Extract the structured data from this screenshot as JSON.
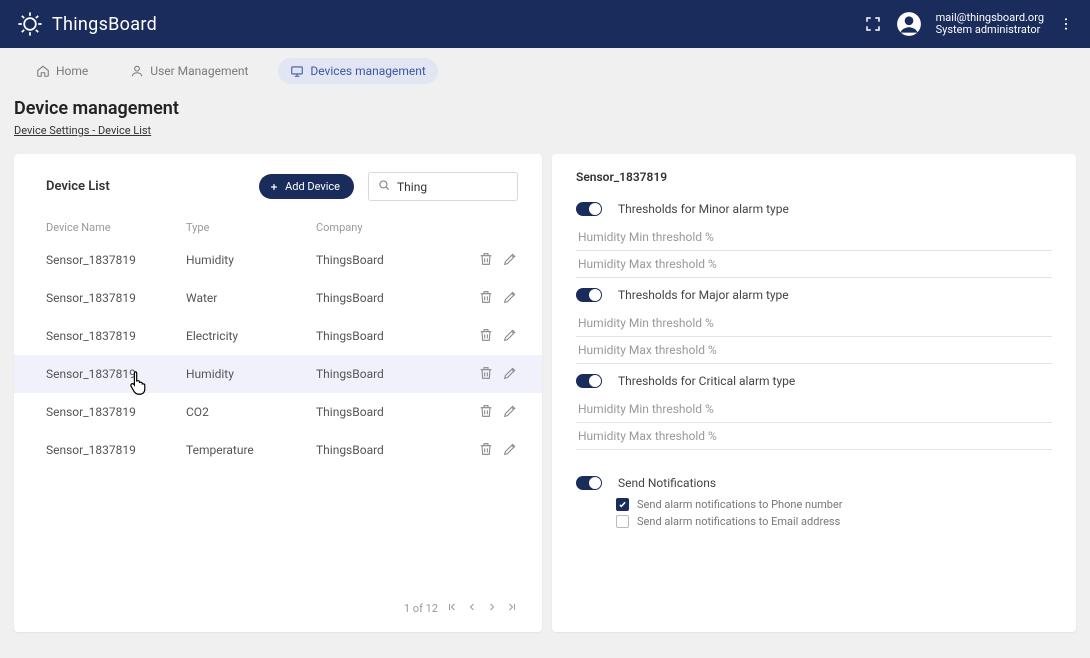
{
  "app": {
    "title": "ThingsBoard"
  },
  "user": {
    "email": "mail@thingsboard.org",
    "role": "System administrator"
  },
  "tabs": {
    "home": "Home",
    "users": "User Management",
    "devices": "Devices management"
  },
  "page": {
    "title": "Device management",
    "breadcrumb": "Device Settings - Device List"
  },
  "list": {
    "title": "Device List",
    "add_label": "Add Device",
    "search_value": "Thing",
    "columns": {
      "name": "Device Name",
      "type": "Type",
      "company": "Company"
    },
    "rows": [
      {
        "name": "Sensor_1837819",
        "type": "Humidity",
        "company": "ThingsBoard"
      },
      {
        "name": "Sensor_1837819",
        "type": "Water",
        "company": "ThingsBoard"
      },
      {
        "name": "Sensor_1837819",
        "type": "Electricity",
        "company": "ThingsBoard"
      },
      {
        "name": "Sensor_1837819",
        "type": "Humidity",
        "company": "ThingsBoard"
      },
      {
        "name": "Sensor_1837819",
        "type": "CO2",
        "company": "ThingsBoard"
      },
      {
        "name": "Sensor_1837819",
        "type": "Temperature",
        "company": "ThingsBoard"
      }
    ],
    "selected_index": 3,
    "pager": "1 of 12"
  },
  "detail": {
    "title": "Sensor_1837819",
    "sections": [
      {
        "label": "Thresholds for Minor alarm type",
        "min_ph": "Humidity Min threshold %",
        "max_ph": "Humidity Max threshold %"
      },
      {
        "label": "Thresholds for Major alarm type",
        "min_ph": "Humidity Min threshold %",
        "max_ph": "Humidity Max threshold %"
      },
      {
        "label": "Thresholds for Critical alarm type",
        "min_ph": "Humidity Min threshold %",
        "max_ph": "Humidity Max threshold %"
      }
    ],
    "notifications": {
      "label": "Send Notifications",
      "phone": "Send alarm notifications to Phone number",
      "email": "Send alarm notifications to Email address",
      "phone_checked": true,
      "email_checked": false
    }
  },
  "colors": {
    "primary": "#1a2c5b",
    "bg": "#f0f0f0"
  }
}
